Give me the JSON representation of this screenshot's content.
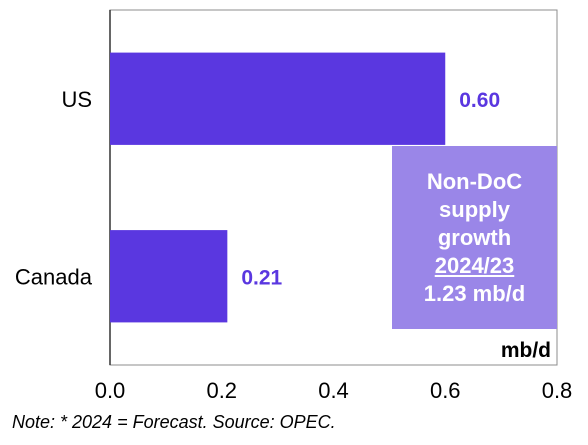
{
  "chart_data": {
    "type": "bar",
    "orientation": "horizontal",
    "categories": [
      "US",
      "Canada"
    ],
    "values": [
      0.6,
      0.21
    ],
    "value_labels": [
      "0.60",
      "0.21"
    ],
    "xlim": [
      0.0,
      0.8
    ],
    "x_ticks": [
      "0.0",
      "0.2",
      "0.4",
      "0.6",
      "0.8"
    ],
    "unit_label": "mb/d",
    "grid": false,
    "bar_color": "#5a37e0",
    "label_color": "#5a37e0"
  },
  "callout": {
    "line1": "Non-DoC",
    "line2": "supply",
    "line3": "growth",
    "line4": "2024/23",
    "line5": "1.23 mb/d",
    "background": "#9a86e8"
  },
  "note": "Note: * 2024 = Forecast. Source: OPEC."
}
